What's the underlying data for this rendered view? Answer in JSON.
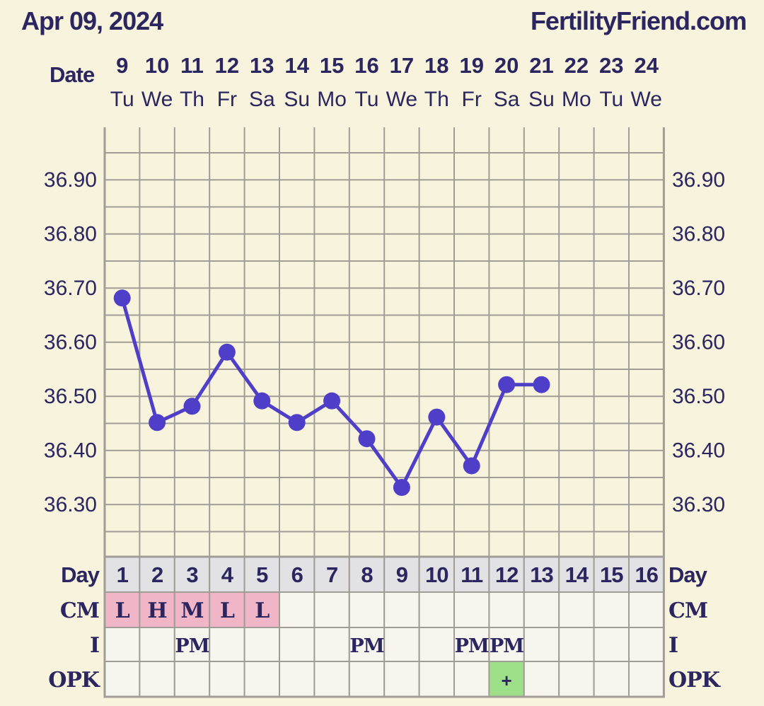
{
  "header": {
    "date": "Apr 09, 2024",
    "site": "FertilityFriend.com"
  },
  "colors": {
    "background": "#f7f3dc",
    "grid": "#a09d96",
    "text": "#2b2660",
    "line": "#4f3fc8",
    "cm_pink": "#f0b6c8",
    "opk_green": "#9ee08a",
    "day_row": "#e2e1e4",
    "cell": "#f7f6ee"
  },
  "chart_data": {
    "type": "line",
    "row_labels": {
      "date": "Date",
      "day": "Day",
      "cm": "CM",
      "i": "I",
      "opk": "OPK"
    },
    "dates": [
      "9",
      "10",
      "11",
      "12",
      "13",
      "14",
      "15",
      "16",
      "17",
      "18",
      "19",
      "20",
      "21",
      "22",
      "23",
      "24"
    ],
    "weekdays": [
      "Tu",
      "We",
      "Th",
      "Fr",
      "Sa",
      "Su",
      "Mo",
      "Tu",
      "We",
      "Th",
      "Fr",
      "Sa",
      "Su",
      "Mo",
      "Tu",
      "We"
    ],
    "cycle_days": [
      "1",
      "2",
      "3",
      "4",
      "5",
      "6",
      "7",
      "8",
      "9",
      "10",
      "11",
      "12",
      "13",
      "14",
      "15",
      "16"
    ],
    "y_ticks": [
      "36.90",
      "36.80",
      "36.70",
      "36.60",
      "36.50",
      "36.40",
      "36.30"
    ],
    "ylim": [
      36.21,
      36.99
    ],
    "temperatures": [
      36.68,
      36.45,
      36.48,
      36.58,
      36.49,
      36.45,
      36.49,
      36.42,
      36.33,
      36.46,
      36.37,
      36.52,
      36.52,
      null,
      null,
      null
    ],
    "cm": [
      "L",
      "H",
      "M",
      "L",
      "L",
      "",
      "",
      "",
      "",
      "",
      "",
      "",
      "",
      "",
      "",
      ""
    ],
    "intercourse": [
      "",
      "",
      "PM",
      "",
      "",
      "",
      "",
      "PM",
      "",
      "",
      "PM",
      "PM",
      "",
      "",
      "",
      ""
    ],
    "opk": [
      "",
      "",
      "",
      "",
      "",
      "",
      "",
      "",
      "",
      "",
      "",
      "+",
      "",
      "",
      "",
      ""
    ]
  }
}
